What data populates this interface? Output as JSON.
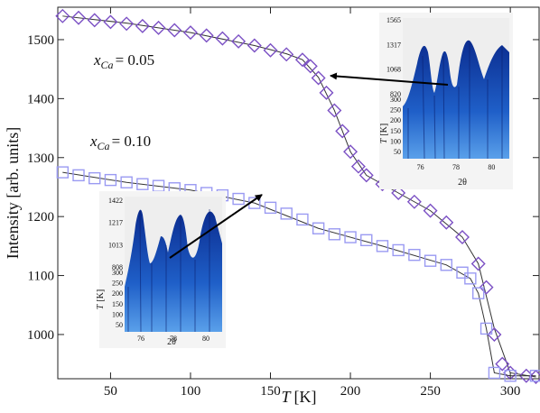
{
  "chart_data": {
    "type": "scatter",
    "xlabel_symbol": "T",
    "xlabel_unit": "[K]",
    "ylabel": "Intensity [arb. units]",
    "xlim": [
      17,
      318
    ],
    "ylim": [
      925,
      1555
    ],
    "xticks": [
      50,
      100,
      150,
      200,
      250,
      300
    ],
    "yticks": [
      1000,
      1100,
      1200,
      1300,
      1400,
      1500
    ],
    "grid": false,
    "series": [
      {
        "label_var": "x",
        "label_sub": "Ca",
        "label_value": "= 0.05",
        "marker": "diamond",
        "color": "#7b50c4",
        "x": [
          20,
          30,
          40,
          50,
          60,
          70,
          80,
          90,
          100,
          110,
          120,
          130,
          140,
          150,
          160,
          170,
          175,
          180,
          185,
          190,
          195,
          200,
          205,
          210,
          220,
          230,
          240,
          250,
          260,
          270,
          280,
          285,
          290,
          295,
          300,
          310,
          316
        ],
        "y": [
          1540,
          1537,
          1533,
          1530,
          1527,
          1523,
          1520,
          1516,
          1512,
          1507,
          1502,
          1497,
          1490,
          1482,
          1475,
          1466,
          1455,
          1435,
          1410,
          1380,
          1345,
          1310,
          1285,
          1270,
          1255,
          1240,
          1225,
          1210,
          1190,
          1165,
          1120,
          1080,
          1000,
          950,
          935,
          930,
          928
        ],
        "fit_x": [
          20,
          60,
          100,
          140,
          160,
          170,
          180,
          190,
          200,
          210,
          230,
          250,
          270,
          280,
          290,
          300,
          316
        ],
        "fit_y": [
          1540,
          1528,
          1512,
          1490,
          1476,
          1466,
          1436,
          1380,
          1310,
          1270,
          1240,
          1210,
          1165,
          1120,
          1010,
          935,
          928
        ]
      },
      {
        "label_var": "x",
        "label_sub": "Ca",
        "label_value": "= 0.10",
        "marker": "square",
        "color": "#9a9af2",
        "x": [
          20,
          30,
          40,
          50,
          60,
          70,
          80,
          90,
          100,
          110,
          120,
          130,
          140,
          150,
          160,
          170,
          180,
          190,
          200,
          210,
          220,
          230,
          240,
          250,
          260,
          270,
          275,
          280,
          285,
          290,
          300,
          316
        ],
        "y": [
          1275,
          1270,
          1265,
          1262,
          1258,
          1255,
          1252,
          1248,
          1245,
          1240,
          1236,
          1230,
          1223,
          1215,
          1205,
          1195,
          1180,
          1170,
          1165,
          1160,
          1150,
          1143,
          1135,
          1125,
          1118,
          1105,
          1095,
          1070,
          1010,
          935,
          930,
          930
        ],
        "fit_x": [
          20,
          60,
          100,
          140,
          180,
          220,
          260,
          275,
          280,
          285,
          290,
          300,
          316
        ],
        "fit_y": [
          1275,
          1258,
          1245,
          1223,
          1180,
          1150,
          1118,
          1095,
          1070,
          1010,
          935,
          930,
          930
        ]
      }
    ],
    "insets": [
      {
        "id": "inset-005",
        "attached_series": 0,
        "xlabel": "2θ",
        "ylabel_symbol": "T",
        "ylabel_unit": "[K]",
        "xticks": [
          "76",
          "78",
          "80"
        ],
        "yticks_lower": [
          "50",
          "100",
          "150",
          "200",
          "250",
          "300"
        ],
        "yticks_upper": [
          "820",
          "1068",
          "1317",
          "1565"
        ],
        "arrow_to": [
          185,
          1425
        ]
      },
      {
        "id": "inset-010",
        "attached_series": 1,
        "xlabel": "2θ",
        "ylabel_symbol": "T",
        "ylabel_unit": "[K]",
        "xticks": [
          "76",
          "78",
          "80"
        ],
        "yticks_lower": [
          "50",
          "100",
          "150",
          "200",
          "250",
          "300"
        ],
        "yticks_upper": [
          "808",
          "1013",
          "1217",
          "1422"
        ],
        "arrow_to": [
          145,
          1212
        ]
      }
    ]
  }
}
